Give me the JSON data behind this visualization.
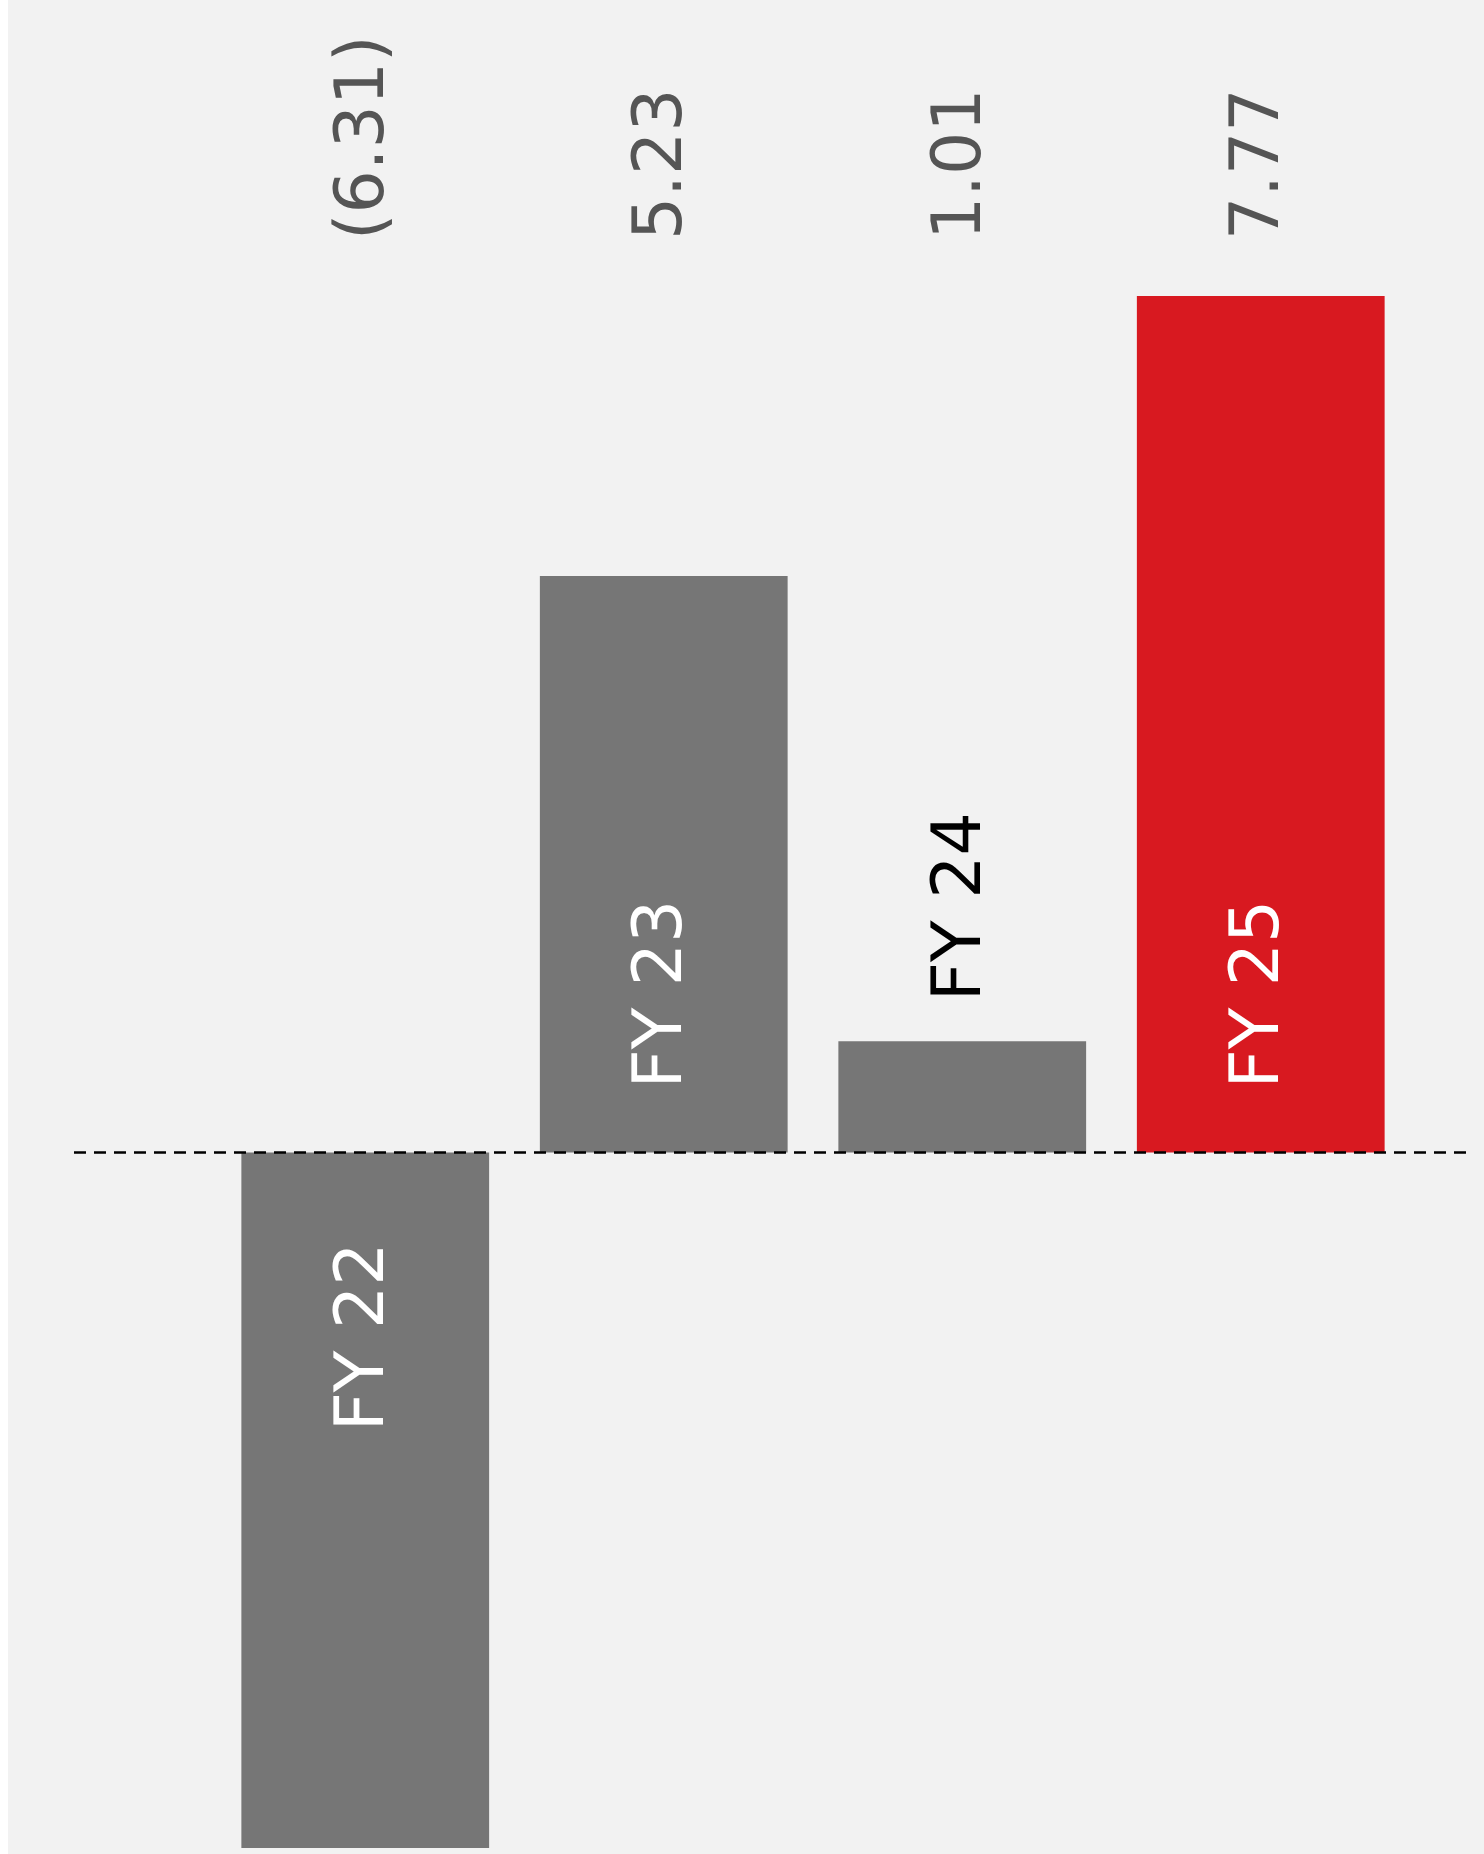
{
  "chart_data": {
    "type": "bar",
    "categories": [
      "FY 22",
      "FY 23",
      "FY 24",
      "FY 25"
    ],
    "values": [
      -6.31,
      5.23,
      1.01,
      7.77
    ],
    "colors": [
      "#767676",
      "#767676",
      "#767676",
      "#d81920"
    ],
    "value_labels": [
      "(6.31)",
      "5.23",
      "1.01",
      "7.77"
    ],
    "ylim": [
      -6.31,
      7.77
    ],
    "ref_lines": [
      {
        "axis": "y",
        "value": 0,
        "color": "#000000",
        "line_style": "dashed"
      }
    ],
    "legend": false
  }
}
